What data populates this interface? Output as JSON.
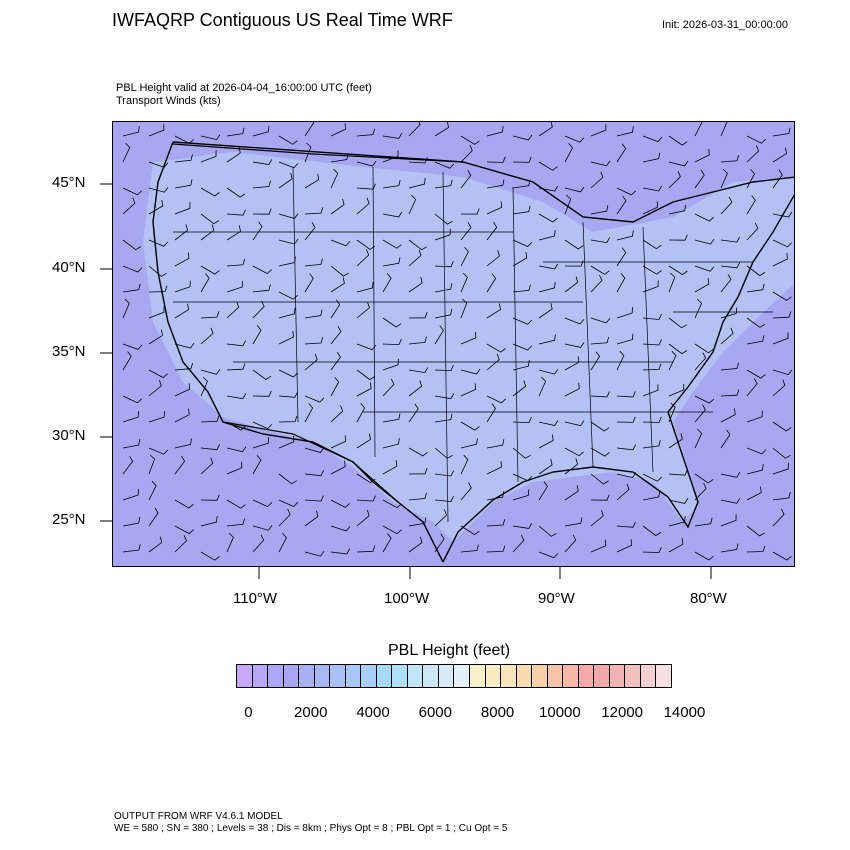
{
  "title": "IWFAQRP Contiguous US Real Time WRF",
  "init_label": "Init: 2026-03-31_00:00:00",
  "field_title": "PBL Height valid at 2026-04-04_16:00:00 UTC   (feet)",
  "field_subtitle": "Transport Winds   (kts)",
  "map": {
    "lat_ticks": [
      "45°N",
      "40°N",
      "35°N",
      "30°N",
      "25°N"
    ],
    "lon_ticks": [
      "110°W",
      "100°W",
      "90°W",
      "80°W"
    ],
    "fill_color": "#a8a8f2",
    "land_tint": "#b6c7f5"
  },
  "colorbar": {
    "title": "PBL Height  (feet)",
    "colors": [
      "#c8a8f8",
      "#b8a8f8",
      "#aca8f8",
      "#a8a8f0",
      "#a8b0f4",
      "#a8b8f4",
      "#a8c0f8",
      "#a8c8f8",
      "#a8d0f8",
      "#a8d8f8",
      "#b0e0f8",
      "#c0e4f8",
      "#cce8f8",
      "#d8ecf8",
      "#e4f0f8",
      "#f8f0c8",
      "#f8ecc0",
      "#f8e4b8",
      "#f8dcb0",
      "#f8d0a8",
      "#f8c4a8",
      "#f8b8a8",
      "#f4aaa8",
      "#f0a8a8",
      "#f0b4b4",
      "#f0c0c0",
      "#f4d0d0",
      "#f8e0e0"
    ],
    "labels": [
      "0",
      "2000",
      "4000",
      "6000",
      "8000",
      "10000",
      "12000",
      "14000"
    ]
  },
  "footer": {
    "line1": "OUTPUT FROM WRF V4.6.1 MODEL",
    "line2": "WE = 580 ; SN = 380 ; Levels = 38 ; Dis = 8km ; Phys Opt = 8 ; PBL Opt = 1 ; Cu Opt = 5"
  }
}
